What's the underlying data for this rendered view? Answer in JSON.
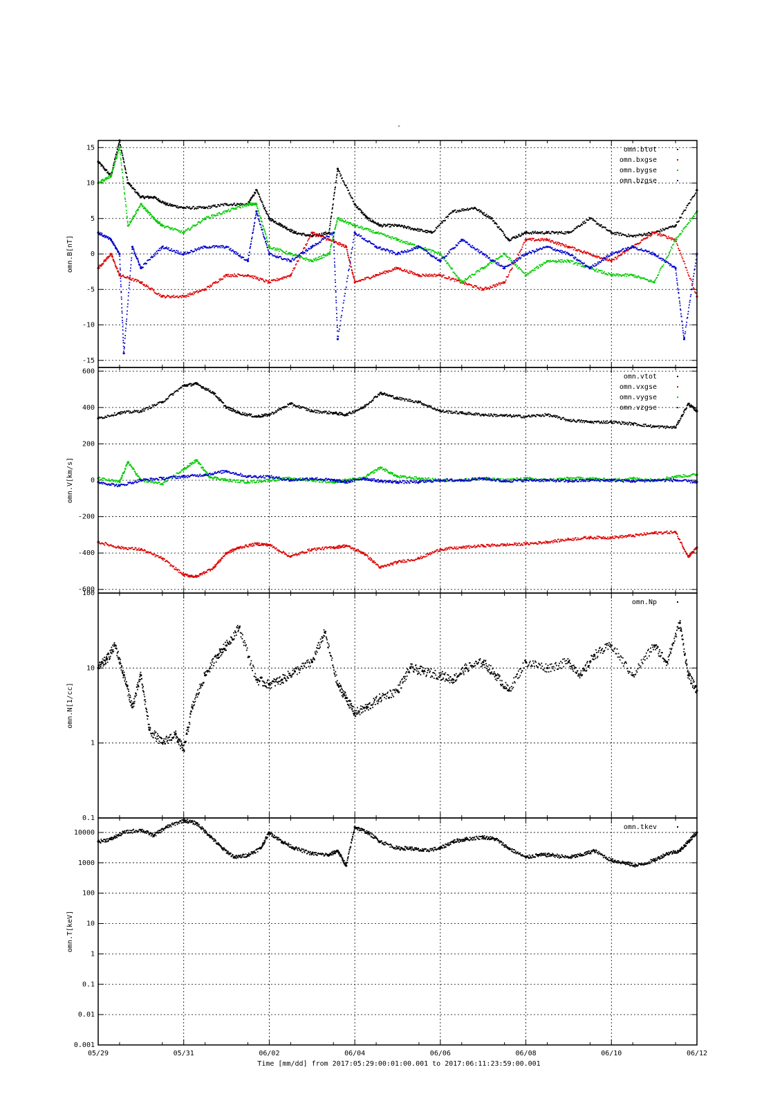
{
  "figure": {
    "title": "-",
    "xlabel": "Time [mm/dd]  from 2017:05:29:00:01:00.001  to  2017:06:11:23:59:00.001",
    "x_tick_labels": [
      "05/29",
      "05/31",
      "06/02",
      "06/04",
      "06/06",
      "06/08",
      "06/10",
      "06/12"
    ],
    "x_range_days": [
      0,
      14
    ]
  },
  "colors": {
    "black": "#000000",
    "red": "#dd0000",
    "green": "#00cc00",
    "blue": "#0000cc"
  },
  "chart_data": [
    {
      "type": "scatter",
      "ylabel": "omn.B[nT]",
      "ylim": [
        -16,
        16
      ],
      "yticks": [
        -15,
        -10,
        -5,
        0,
        5,
        10,
        15
      ],
      "ytick_labels": [
        "-15",
        "-10",
        "-5",
        "0",
        "5",
        "10",
        "15"
      ],
      "grid": true,
      "legend_position": "top-right",
      "series": [
        {
          "name": "omn.btot",
          "color": "#000000",
          "x": [
            0,
            0.3,
            0.5,
            0.7,
            1.0,
            1.3,
            1.6,
            2.0,
            2.5,
            3.0,
            3.5,
            3.7,
            4.0,
            4.3,
            4.6,
            5.0,
            5.4,
            5.6,
            6.0,
            6.3,
            6.6,
            7.0,
            7.4,
            7.8,
            8.3,
            8.8,
            9.2,
            9.6,
            10.0,
            10.5,
            11.0,
            11.5,
            12.0,
            12.5,
            13.0,
            13.5,
            14.0
          ],
          "y": [
            13,
            11,
            16,
            10,
            8,
            8,
            7,
            6.5,
            6.5,
            7,
            7,
            9,
            5,
            4,
            3,
            2.5,
            3,
            12,
            7,
            5,
            4,
            4,
            3.5,
            3,
            6,
            6.5,
            5,
            2,
            3,
            3,
            3,
            5,
            3,
            2.5,
            3,
            4,
            9
          ]
        },
        {
          "name": "omn.bxgse",
          "color": "#dd0000",
          "x": [
            0,
            0.3,
            0.5,
            1.0,
            1.5,
            2.0,
            2.5,
            3.0,
            3.5,
            4.0,
            4.5,
            5.0,
            5.4,
            5.8,
            6.0,
            6.5,
            7.0,
            7.5,
            8.0,
            8.5,
            9.0,
            9.5,
            10.0,
            10.5,
            11.0,
            11.5,
            12.0,
            12.5,
            13.0,
            13.5,
            14.0
          ],
          "y": [
            -2,
            0,
            -3,
            -4,
            -6,
            -6,
            -5,
            -3,
            -3,
            -4,
            -3,
            3,
            2,
            1,
            -4,
            -3,
            -2,
            -3,
            -3,
            -4,
            -5,
            -4,
            2,
            2,
            1,
            0,
            -1,
            1,
            3,
            2,
            -6
          ]
        },
        {
          "name": "omn.bygse",
          "color": "#00cc00",
          "x": [
            0,
            0.3,
            0.5,
            0.7,
            1.0,
            1.3,
            1.5,
            2.0,
            2.5,
            3.0,
            3.5,
            3.7,
            4.0,
            4.5,
            5.0,
            5.4,
            5.6,
            6.0,
            6.5,
            7.0,
            7.5,
            8.0,
            8.5,
            9.0,
            9.5,
            10.0,
            10.5,
            11.0,
            11.5,
            12.0,
            12.5,
            13.0,
            13.5,
            14.0
          ],
          "y": [
            10,
            11,
            15,
            4,
            7,
            5,
            4,
            3,
            5,
            6,
            7,
            7,
            1,
            0,
            -1,
            0,
            5,
            4,
            3,
            2,
            1,
            0,
            -4,
            -2,
            0,
            -3,
            -1,
            -1,
            -2,
            -3,
            -3,
            -4,
            2,
            6
          ]
        },
        {
          "name": "omn.bzgse",
          "color": "#0000cc",
          "x": [
            0,
            0.3,
            0.5,
            0.6,
            0.8,
            1.0,
            1.5,
            2.0,
            2.5,
            3.0,
            3.5,
            3.7,
            4.0,
            4.5,
            5.0,
            5.5,
            5.6,
            6.0,
            6.5,
            7.0,
            7.5,
            8.0,
            8.5,
            9.0,
            9.5,
            10.0,
            10.5,
            11.0,
            11.5,
            12.0,
            12.5,
            13.0,
            13.5,
            13.7,
            14.0
          ],
          "y": [
            3,
            2,
            0,
            -14,
            1,
            -2,
            1,
            0,
            1,
            1,
            -1,
            6,
            0,
            -1,
            1,
            3,
            -12,
            3,
            1,
            0,
            1,
            -1,
            2,
            0,
            -2,
            0,
            1,
            0,
            -2,
            0,
            1,
            0,
            -2,
            -12,
            0
          ]
        }
      ]
    },
    {
      "type": "scatter",
      "ylabel": "omn.V[km/s]",
      "ylim": [
        -620,
        620
      ],
      "yticks": [
        -600,
        -400,
        -200,
        0,
        200,
        400,
        600
      ],
      "ytick_labels": [
        "-600",
        "-400",
        "-200",
        "0",
        "200",
        "400",
        "600"
      ],
      "grid": true,
      "legend_position": "top-right",
      "series": [
        {
          "name": "omn.vtot",
          "color": "#000000",
          "x": [
            0,
            0.5,
            1.0,
            1.5,
            2.0,
            2.3,
            2.7,
            3.0,
            3.3,
            3.7,
            4.0,
            4.5,
            5.0,
            5.5,
            5.8,
            6.2,
            6.6,
            7.0,
            7.5,
            8.0,
            8.5,
            9.0,
            9.5,
            10.0,
            10.5,
            11.0,
            11.5,
            12.0,
            12.5,
            13.0,
            13.5,
            13.8,
            14.0
          ],
          "y": [
            340,
            370,
            380,
            430,
            520,
            530,
            480,
            400,
            370,
            350,
            360,
            420,
            380,
            370,
            360,
            400,
            480,
            450,
            430,
            380,
            370,
            360,
            355,
            350,
            360,
            330,
            320,
            320,
            310,
            295,
            290,
            420,
            380
          ]
        },
        {
          "name": "omn.vxgse",
          "color": "#dd0000",
          "x": [
            0,
            0.5,
            1.0,
            1.5,
            2.0,
            2.3,
            2.7,
            3.0,
            3.3,
            3.7,
            4.0,
            4.5,
            5.0,
            5.5,
            5.8,
            6.2,
            6.6,
            7.0,
            7.5,
            8.0,
            8.5,
            9.0,
            9.5,
            10.0,
            10.5,
            11.0,
            11.5,
            12.0,
            12.5,
            13.0,
            13.5,
            13.8,
            14.0
          ],
          "y": [
            -340,
            -370,
            -380,
            -430,
            -520,
            -530,
            -480,
            -400,
            -370,
            -350,
            -355,
            -420,
            -380,
            -370,
            -360,
            -400,
            -480,
            -450,
            -430,
            -380,
            -370,
            -360,
            -355,
            -350,
            -340,
            -325,
            -315,
            -315,
            -305,
            -290,
            -285,
            -420,
            -370
          ]
        },
        {
          "name": "omn.vygse",
          "color": "#00cc00",
          "x": [
            0,
            0.5,
            0.7,
            1.0,
            1.5,
            2.0,
            2.3,
            2.6,
            3.0,
            3.5,
            4.0,
            4.5,
            5.0,
            5.5,
            5.8,
            6.2,
            6.6,
            7.0,
            7.5,
            8.0,
            8.5,
            9.0,
            9.5,
            10.0,
            10.5,
            11.0,
            11.5,
            12.0,
            12.5,
            13.0,
            13.5,
            14.0
          ],
          "y": [
            10,
            -10,
            100,
            0,
            -20,
            60,
            110,
            20,
            0,
            -10,
            0,
            10,
            0,
            -10,
            0,
            10,
            70,
            20,
            10,
            0,
            0,
            10,
            0,
            10,
            0,
            10,
            10,
            0,
            10,
            0,
            20,
            30
          ]
        },
        {
          "name": "omn.vzgse",
          "color": "#0000cc",
          "x": [
            0,
            0.5,
            1.0,
            1.5,
            2.0,
            2.5,
            3.0,
            3.5,
            4.0,
            4.5,
            5.0,
            5.5,
            5.8,
            6.2,
            6.6,
            7.0,
            7.5,
            8.0,
            8.5,
            9.0,
            9.5,
            10.0,
            10.5,
            11.0,
            11.5,
            12.0,
            12.5,
            13.0,
            13.5,
            14.0
          ],
          "y": [
            -10,
            -30,
            0,
            10,
            20,
            30,
            50,
            20,
            20,
            0,
            10,
            0,
            -10,
            10,
            -5,
            -10,
            -10,
            0,
            0,
            10,
            -5,
            0,
            0,
            -5,
            0,
            0,
            -5,
            0,
            0,
            -10
          ]
        }
      ]
    },
    {
      "type": "scatter",
      "ylabel": "omn.N[1/cc]",
      "yscale": "log",
      "ylim": [
        0.1,
        100
      ],
      "yticks": [
        0.1,
        1,
        10,
        100
      ],
      "ytick_labels": [
        "0.1",
        "1",
        "10",
        "100"
      ],
      "grid": true,
      "legend_position": "top-right",
      "series": [
        {
          "name": "omn.Np",
          "color": "#000000",
          "x": [
            0,
            0.2,
            0.4,
            0.6,
            0.8,
            1.0,
            1.2,
            1.5,
            1.8,
            2.0,
            2.2,
            2.5,
            2.8,
            3.0,
            3.3,
            3.7,
            4.0,
            4.3,
            4.6,
            5.0,
            5.3,
            5.6,
            5.8,
            6.0,
            6.3,
            6.6,
            7.0,
            7.3,
            7.6,
            8.0,
            8.3,
            8.6,
            9.0,
            9.3,
            9.6,
            10.0,
            10.5,
            11.0,
            11.3,
            11.6,
            12.0,
            12.5,
            13.0,
            13.3,
            13.6,
            13.8,
            14.0
          ],
          "y": [
            10,
            13,
            20,
            8,
            3,
            8,
            1.5,
            1.0,
            1.3,
            0.8,
            3,
            8,
            15,
            20,
            35,
            7,
            6,
            7,
            9,
            12,
            30,
            6,
            4,
            2.5,
            3,
            4,
            5,
            10,
            9,
            8,
            7,
            10,
            12,
            8,
            5,
            12,
            10,
            12,
            8,
            15,
            20,
            8,
            20,
            12,
            40,
            8,
            5
          ]
        }
      ]
    },
    {
      "type": "scatter",
      "ylabel": "omn.T[keV]",
      "yscale": "log",
      "ylim": [
        0.001,
        30000
      ],
      "yticks": [
        0.001,
        0.01,
        0.1,
        1,
        10,
        100,
        1000,
        10000
      ],
      "ytick_labels": [
        "0.001",
        "0.01",
        "0.1",
        "1",
        "10",
        "100",
        "1000",
        "10000"
      ],
      "grid": true,
      "legend_position": "top-right",
      "series": [
        {
          "name": "omn.tkev",
          "color": "#000000",
          "x": [
            0,
            0.3,
            0.6,
            1.0,
            1.3,
            1.6,
            2.0,
            2.3,
            2.6,
            2.9,
            3.2,
            3.5,
            3.8,
            4.0,
            4.3,
            4.6,
            5.0,
            5.4,
            5.6,
            5.8,
            6.0,
            6.3,
            6.6,
            7.0,
            7.3,
            7.6,
            8.0,
            8.3,
            8.6,
            9.0,
            9.3,
            9.6,
            10.0,
            10.3,
            10.6,
            11.0,
            11.3,
            11.6,
            12.0,
            12.3,
            12.6,
            13.0,
            13.3,
            13.6,
            13.8,
            14.0
          ],
          "y": [
            5000,
            6000,
            10000,
            12000,
            8000,
            15000,
            25000,
            20000,
            8000,
            3000,
            1500,
            1800,
            3000,
            10000,
            5000,
            3000,
            2000,
            1800,
            2500,
            800,
            15000,
            10000,
            5000,
            3000,
            3000,
            2500,
            3000,
            5000,
            6000,
            7000,
            6000,
            3000,
            1500,
            1800,
            1800,
            1500,
            1800,
            2500,
            1200,
            1000,
            800,
            1200,
            2000,
            2500,
            5000,
            10000
          ]
        }
      ]
    }
  ]
}
